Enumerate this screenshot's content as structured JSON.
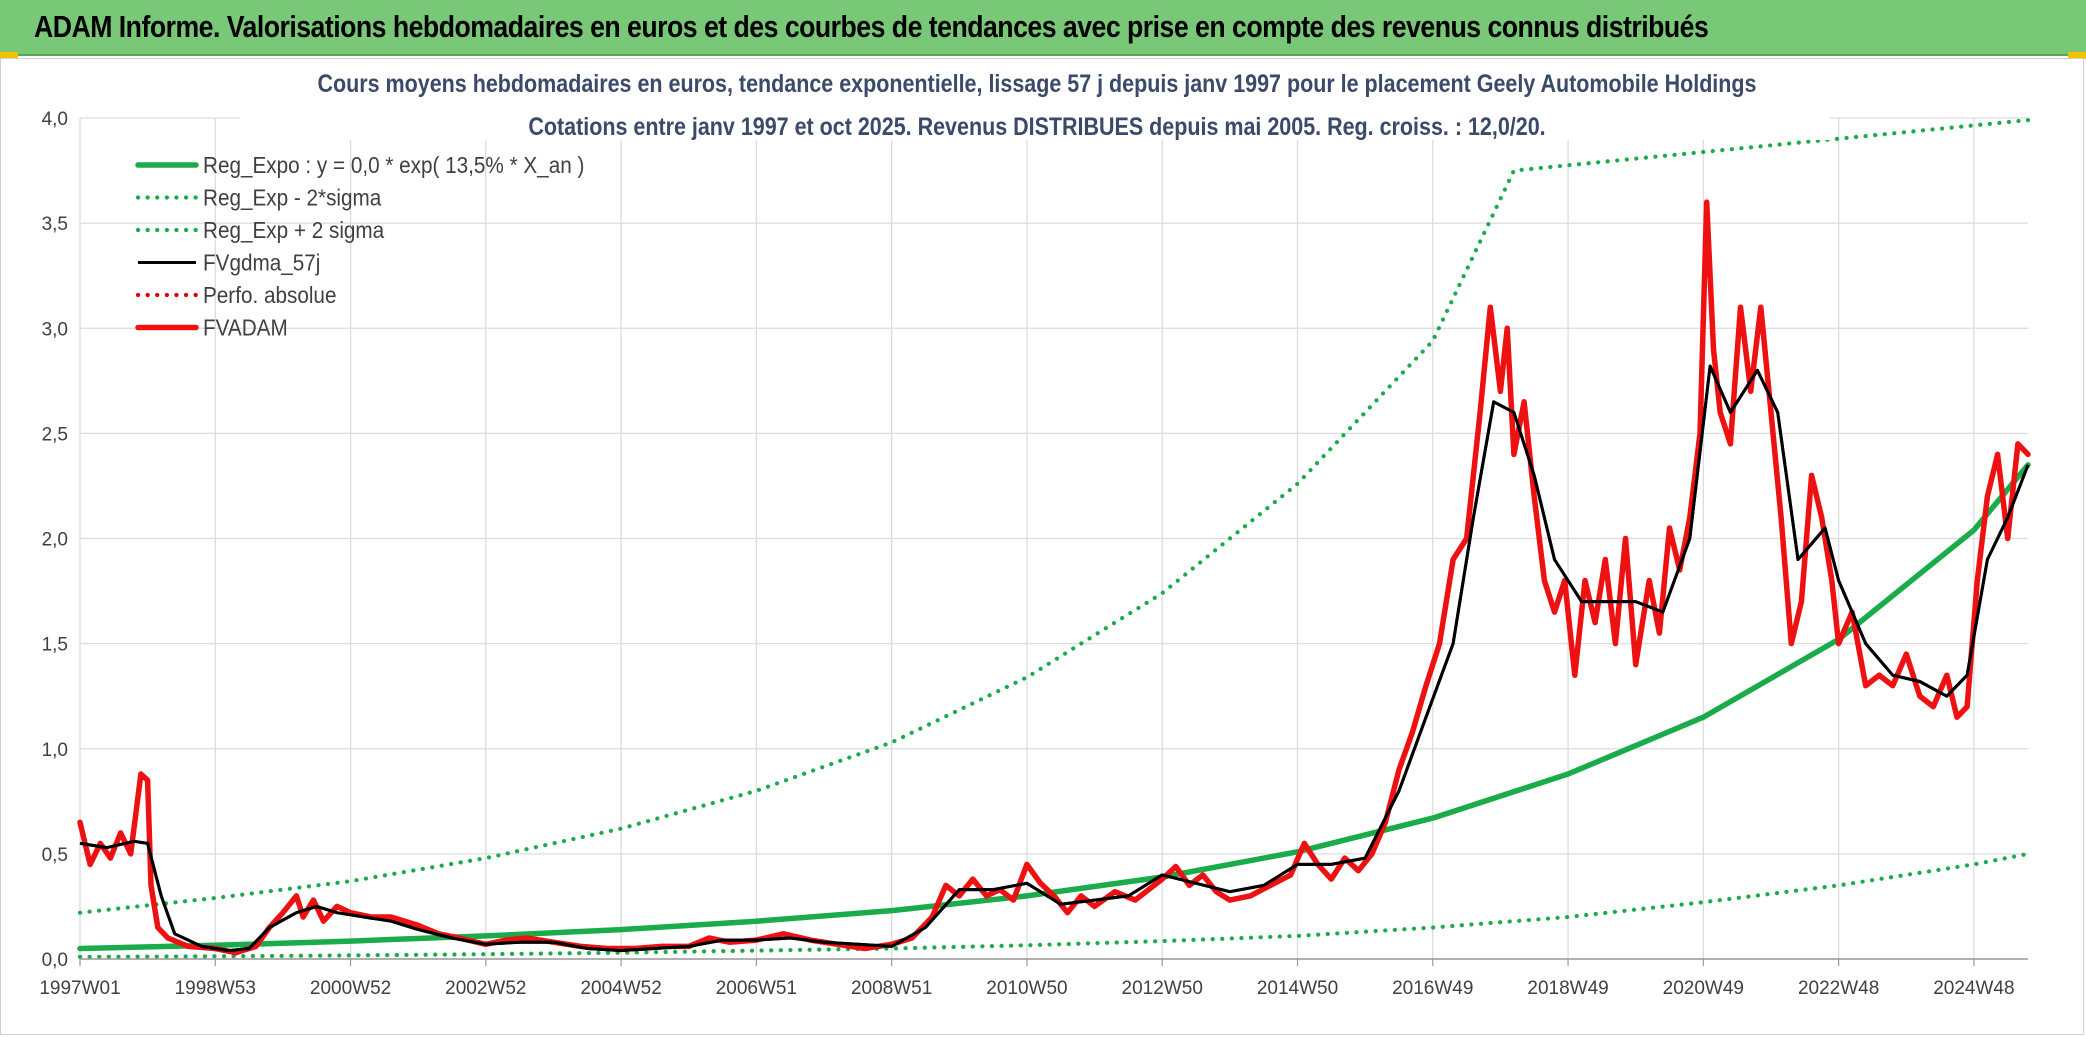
{
  "header": {
    "banner": "ADAM Informe. Valorisations hebdomadaires en euros et des courbes de tendances avec prise en compte des revenus connus distribués"
  },
  "colors": {
    "banner_bg": "#78c878",
    "reg_expo": "#1aab4a",
    "sigma": "#1aab4a",
    "fvgdma": "#000000",
    "perfo": "#e00000",
    "fvadam": "#ee1111",
    "grid": "#d9d9d9"
  },
  "chart_data": {
    "type": "line",
    "title_line1": "Cours moyens hebdomadaires en euros, tendance exponentielle, lissage 57 j depuis janv 1997 pour le placement Geely Automobile Holdings",
    "title_line2": "Cotations entre janv 1997 et oct 2025. Revenus DISTRIBUES depuis mai 2005. Reg. croiss. : 12,0/20.",
    "xlabel": "",
    "ylabel": "",
    "xlim": [
      1997.0,
      2025.8
    ],
    "ylim": [
      0,
      4.0
    ],
    "y_ticks": [
      {
        "value": 0.0,
        "label": "0,0"
      },
      {
        "value": 0.5,
        "label": "0,5"
      },
      {
        "value": 1.0,
        "label": "1,0"
      },
      {
        "value": 1.5,
        "label": "1,5"
      },
      {
        "value": 2.0,
        "label": "2,0"
      },
      {
        "value": 2.5,
        "label": "2,5"
      },
      {
        "value": 3.0,
        "label": "3,0"
      },
      {
        "value": 3.5,
        "label": "3,5"
      },
      {
        "value": 4.0,
        "label": "4,0"
      }
    ],
    "x_ticks": [
      {
        "value": 1997.0,
        "label": "1997W01"
      },
      {
        "value": 1999.0,
        "label": "1998W53"
      },
      {
        "value": 2001.0,
        "label": "2000W52"
      },
      {
        "value": 2003.0,
        "label": "2002W52"
      },
      {
        "value": 2005.0,
        "label": "2004W52"
      },
      {
        "value": 2007.0,
        "label": "2006W51"
      },
      {
        "value": 2009.0,
        "label": "2008W51"
      },
      {
        "value": 2011.0,
        "label": "2010W50"
      },
      {
        "value": 2013.0,
        "label": "2012W50"
      },
      {
        "value": 2015.0,
        "label": "2014W50"
      },
      {
        "value": 2017.0,
        "label": "2016W49"
      },
      {
        "value": 2019.0,
        "label": "2018W49"
      },
      {
        "value": 2021.0,
        "label": "2020W49"
      },
      {
        "value": 2023.0,
        "label": "2022W48"
      },
      {
        "value": 2025.0,
        "label": "2024W48"
      }
    ],
    "legend_position": "top-left",
    "series": [
      {
        "name": "Reg_Expo : y = 0,0 * exp( 13,5% *  X_an )",
        "style": "solid-thick",
        "color": "#1aab4a",
        "points": [
          [
            1997.0,
            0.05
          ],
          [
            1999.0,
            0.065
          ],
          [
            2001.0,
            0.085
          ],
          [
            2003.0,
            0.11
          ],
          [
            2005.0,
            0.14
          ],
          [
            2007.0,
            0.18
          ],
          [
            2009.0,
            0.23
          ],
          [
            2011.0,
            0.3
          ],
          [
            2013.0,
            0.39
          ],
          [
            2015.0,
            0.51
          ],
          [
            2017.0,
            0.67
          ],
          [
            2019.0,
            0.88
          ],
          [
            2021.0,
            1.15
          ],
          [
            2023.0,
            1.52
          ],
          [
            2025.0,
            2.04
          ],
          [
            2025.8,
            2.35
          ]
        ]
      },
      {
        "name": "Reg_Exp - 2*sigma",
        "style": "dotted",
        "color": "#1aab4a",
        "points": [
          [
            1997.0,
            0.01
          ],
          [
            1999.0,
            0.013
          ],
          [
            2001.0,
            0.017
          ],
          [
            2003.0,
            0.023
          ],
          [
            2005.0,
            0.03
          ],
          [
            2007.0,
            0.04
          ],
          [
            2009.0,
            0.05
          ],
          [
            2011.0,
            0.065
          ],
          [
            2013.0,
            0.085
          ],
          [
            2015.0,
            0.11
          ],
          [
            2017.0,
            0.15
          ],
          [
            2019.0,
            0.2
          ],
          [
            2021.0,
            0.27
          ],
          [
            2023.0,
            0.35
          ],
          [
            2025.0,
            0.45
          ],
          [
            2025.8,
            0.5
          ]
        ]
      },
      {
        "name": "Reg_Exp + 2 sigma",
        "style": "dotted",
        "color": "#1aab4a",
        "points": [
          [
            1997.0,
            0.22
          ],
          [
            1999.0,
            0.29
          ],
          [
            2001.0,
            0.37
          ],
          [
            2003.0,
            0.48
          ],
          [
            2005.0,
            0.62
          ],
          [
            2007.0,
            0.8
          ],
          [
            2009.0,
            1.03
          ],
          [
            2011.0,
            1.34
          ],
          [
            2013.0,
            1.74
          ],
          [
            2015.0,
            2.26
          ],
          [
            2017.0,
            2.94
          ],
          [
            2018.2,
            3.75
          ],
          [
            2025.8,
            3.99
          ]
        ]
      },
      {
        "name": "FVgdma_57j",
        "style": "solid",
        "color": "#000000",
        "points": [
          [
            1997.0,
            0.55
          ],
          [
            1997.4,
            0.53
          ],
          [
            1997.8,
            0.56
          ],
          [
            1998.0,
            0.55
          ],
          [
            1998.2,
            0.3
          ],
          [
            1998.4,
            0.12
          ],
          [
            1998.8,
            0.06
          ],
          [
            1999.2,
            0.04
          ],
          [
            1999.5,
            0.05
          ],
          [
            1999.8,
            0.15
          ],
          [
            2000.2,
            0.22
          ],
          [
            2000.5,
            0.25
          ],
          [
            2000.8,
            0.22
          ],
          [
            2001.2,
            0.2
          ],
          [
            2001.6,
            0.18
          ],
          [
            2002.0,
            0.14
          ],
          [
            2002.5,
            0.1
          ],
          [
            2003.0,
            0.07
          ],
          [
            2003.5,
            0.08
          ],
          [
            2004.0,
            0.08
          ],
          [
            2004.5,
            0.05
          ],
          [
            2005.0,
            0.04
          ],
          [
            2005.5,
            0.05
          ],
          [
            2006.0,
            0.06
          ],
          [
            2006.5,
            0.09
          ],
          [
            2007.0,
            0.09
          ],
          [
            2007.5,
            0.1
          ],
          [
            2008.0,
            0.08
          ],
          [
            2008.5,
            0.07
          ],
          [
            2009.0,
            0.06
          ],
          [
            2009.5,
            0.15
          ],
          [
            2010.0,
            0.33
          ],
          [
            2010.5,
            0.33
          ],
          [
            2011.0,
            0.36
          ],
          [
            2011.5,
            0.26
          ],
          [
            2012.0,
            0.28
          ],
          [
            2012.5,
            0.3
          ],
          [
            2013.0,
            0.4
          ],
          [
            2013.5,
            0.36
          ],
          [
            2014.0,
            0.32
          ],
          [
            2014.5,
            0.35
          ],
          [
            2015.0,
            0.45
          ],
          [
            2015.5,
            0.45
          ],
          [
            2016.0,
            0.48
          ],
          [
            2016.5,
            0.8
          ],
          [
            2016.9,
            1.15
          ],
          [
            2017.3,
            1.5
          ],
          [
            2017.6,
            2.1
          ],
          [
            2017.9,
            2.65
          ],
          [
            2018.2,
            2.6
          ],
          [
            2018.5,
            2.3
          ],
          [
            2018.8,
            1.9
          ],
          [
            2019.2,
            1.7
          ],
          [
            2019.6,
            1.7
          ],
          [
            2020.0,
            1.7
          ],
          [
            2020.4,
            1.65
          ],
          [
            2020.8,
            2.0
          ],
          [
            2021.1,
            2.82
          ],
          [
            2021.4,
            2.6
          ],
          [
            2021.8,
            2.8
          ],
          [
            2022.1,
            2.6
          ],
          [
            2022.4,
            1.9
          ],
          [
            2022.8,
            2.05
          ],
          [
            2023.0,
            1.8
          ],
          [
            2023.4,
            1.5
          ],
          [
            2023.8,
            1.35
          ],
          [
            2024.2,
            1.32
          ],
          [
            2024.6,
            1.25
          ],
          [
            2024.9,
            1.35
          ],
          [
            2025.2,
            1.9
          ],
          [
            2025.5,
            2.1
          ],
          [
            2025.8,
            2.35
          ]
        ]
      },
      {
        "name": "Perfo. absolue",
        "style": "dotted",
        "color": "#e00000",
        "points": []
      },
      {
        "name": "FVADAM",
        "style": "solid-thick",
        "color": "#ee1111",
        "points": [
          [
            1997.0,
            0.65
          ],
          [
            1997.15,
            0.45
          ],
          [
            1997.3,
            0.55
          ],
          [
            1997.45,
            0.48
          ],
          [
            1997.6,
            0.6
          ],
          [
            1997.75,
            0.5
          ],
          [
            1997.9,
            0.88
          ],
          [
            1998.0,
            0.85
          ],
          [
            1998.05,
            0.35
          ],
          [
            1998.15,
            0.15
          ],
          [
            1998.3,
            0.1
          ],
          [
            1998.6,
            0.06
          ],
          [
            1999.0,
            0.05
          ],
          [
            1999.3,
            0.03
          ],
          [
            1999.6,
            0.06
          ],
          [
            1999.8,
            0.15
          ],
          [
            2000.0,
            0.22
          ],
          [
            2000.2,
            0.3
          ],
          [
            2000.3,
            0.2
          ],
          [
            2000.45,
            0.28
          ],
          [
            2000.6,
            0.18
          ],
          [
            2000.8,
            0.25
          ],
          [
            2001.0,
            0.22
          ],
          [
            2001.3,
            0.2
          ],
          [
            2001.6,
            0.2
          ],
          [
            2002.0,
            0.16
          ],
          [
            2002.3,
            0.12
          ],
          [
            2002.6,
            0.1
          ],
          [
            2003.0,
            0.07
          ],
          [
            2003.3,
            0.09
          ],
          [
            2003.6,
            0.1
          ],
          [
            2004.0,
            0.08
          ],
          [
            2004.4,
            0.06
          ],
          [
            2004.8,
            0.05
          ],
          [
            2005.2,
            0.05
          ],
          [
            2005.6,
            0.06
          ],
          [
            2006.0,
            0.06
          ],
          [
            2006.3,
            0.1
          ],
          [
            2006.6,
            0.08
          ],
          [
            2007.0,
            0.09
          ],
          [
            2007.4,
            0.12
          ],
          [
            2007.8,
            0.09
          ],
          [
            2008.2,
            0.07
          ],
          [
            2008.6,
            0.05
          ],
          [
            2009.0,
            0.07
          ],
          [
            2009.3,
            0.1
          ],
          [
            2009.6,
            0.2
          ],
          [
            2009.8,
            0.35
          ],
          [
            2010.0,
            0.3
          ],
          [
            2010.2,
            0.38
          ],
          [
            2010.4,
            0.3
          ],
          [
            2010.6,
            0.33
          ],
          [
            2010.8,
            0.28
          ],
          [
            2011.0,
            0.45
          ],
          [
            2011.2,
            0.36
          ],
          [
            2011.4,
            0.3
          ],
          [
            2011.6,
            0.22
          ],
          [
            2011.8,
            0.3
          ],
          [
            2012.0,
            0.25
          ],
          [
            2012.3,
            0.32
          ],
          [
            2012.6,
            0.28
          ],
          [
            2013.0,
            0.38
          ],
          [
            2013.2,
            0.44
          ],
          [
            2013.4,
            0.35
          ],
          [
            2013.6,
            0.4
          ],
          [
            2013.8,
            0.32
          ],
          [
            2014.0,
            0.28
          ],
          [
            2014.3,
            0.3
          ],
          [
            2014.6,
            0.35
          ],
          [
            2014.9,
            0.4
          ],
          [
            2015.1,
            0.55
          ],
          [
            2015.3,
            0.45
          ],
          [
            2015.5,
            0.38
          ],
          [
            2015.7,
            0.48
          ],
          [
            2015.9,
            0.42
          ],
          [
            2016.1,
            0.5
          ],
          [
            2016.3,
            0.65
          ],
          [
            2016.5,
            0.9
          ],
          [
            2016.7,
            1.08
          ],
          [
            2016.9,
            1.3
          ],
          [
            2017.1,
            1.5
          ],
          [
            2017.3,
            1.9
          ],
          [
            2017.5,
            2.0
          ],
          [
            2017.7,
            2.6
          ],
          [
            2017.85,
            3.1
          ],
          [
            2018.0,
            2.7
          ],
          [
            2018.1,
            3.0
          ],
          [
            2018.2,
            2.4
          ],
          [
            2018.35,
            2.65
          ],
          [
            2018.5,
            2.2
          ],
          [
            2018.65,
            1.8
          ],
          [
            2018.8,
            1.65
          ],
          [
            2018.95,
            1.8
          ],
          [
            2019.1,
            1.35
          ],
          [
            2019.25,
            1.8
          ],
          [
            2019.4,
            1.6
          ],
          [
            2019.55,
            1.9
          ],
          [
            2019.7,
            1.5
          ],
          [
            2019.85,
            2.0
          ],
          [
            2020.0,
            1.4
          ],
          [
            2020.2,
            1.8
          ],
          [
            2020.35,
            1.55
          ],
          [
            2020.5,
            2.05
          ],
          [
            2020.65,
            1.85
          ],
          [
            2020.8,
            2.1
          ],
          [
            2020.95,
            2.5
          ],
          [
            2021.05,
            3.6
          ],
          [
            2021.15,
            2.9
          ],
          [
            2021.25,
            2.6
          ],
          [
            2021.4,
            2.45
          ],
          [
            2021.55,
            3.1
          ],
          [
            2021.7,
            2.7
          ],
          [
            2021.85,
            3.1
          ],
          [
            2022.0,
            2.6
          ],
          [
            2022.15,
            2.1
          ],
          [
            2022.3,
            1.5
          ],
          [
            2022.45,
            1.7
          ],
          [
            2022.6,
            2.3
          ],
          [
            2022.75,
            2.1
          ],
          [
            2022.9,
            1.8
          ],
          [
            2023.0,
            1.5
          ],
          [
            2023.2,
            1.65
          ],
          [
            2023.4,
            1.3
          ],
          [
            2023.6,
            1.35
          ],
          [
            2023.8,
            1.3
          ],
          [
            2024.0,
            1.45
          ],
          [
            2024.2,
            1.25
          ],
          [
            2024.4,
            1.2
          ],
          [
            2024.6,
            1.35
          ],
          [
            2024.75,
            1.15
          ],
          [
            2024.9,
            1.2
          ],
          [
            2025.05,
            1.8
          ],
          [
            2025.2,
            2.2
          ],
          [
            2025.35,
            2.4
          ],
          [
            2025.5,
            2.0
          ],
          [
            2025.65,
            2.45
          ],
          [
            2025.8,
            2.4
          ]
        ]
      }
    ]
  }
}
